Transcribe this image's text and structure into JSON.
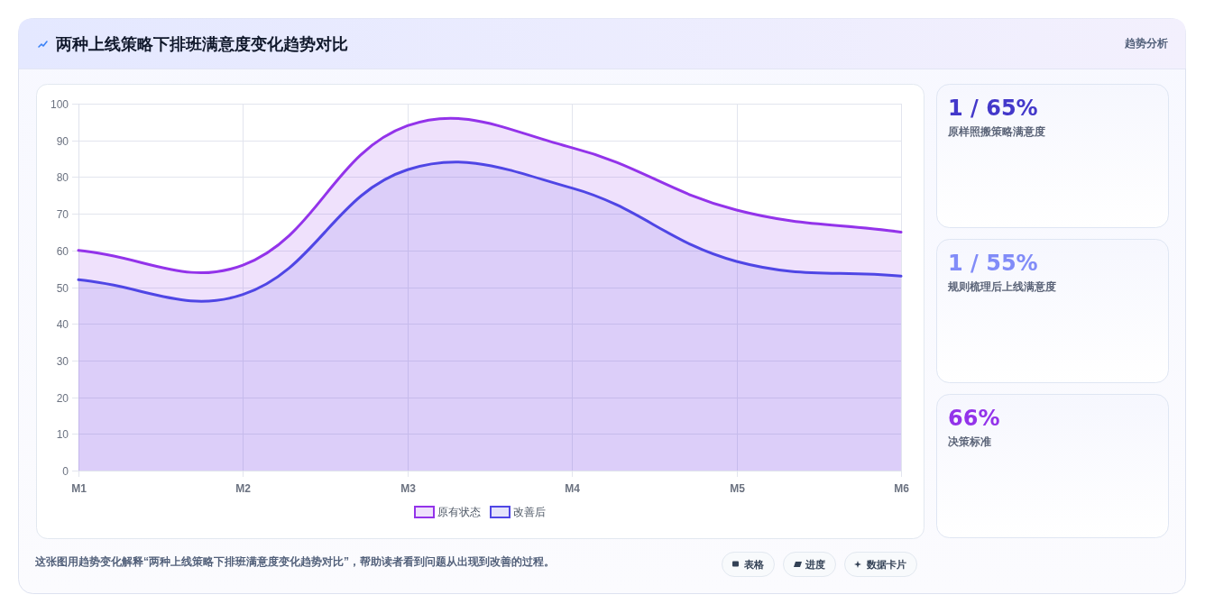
{
  "chart_data": [
    {
      "type": "area",
      "title": "两种上线策略下排班满意度变化趋势对比",
      "categories": [
        "M1",
        "M2",
        "M3",
        "M4",
        "M5",
        "M6"
      ],
      "series": [
        {
          "name": "原有状态",
          "color": "#9333ea",
          "values": [
            60,
            56,
            94,
            88,
            71,
            65
          ]
        },
        {
          "name": "改善后",
          "color": "#4f46e5",
          "values": [
            52,
            48,
            82,
            77,
            57,
            53
          ]
        }
      ],
      "ylim": [
        0,
        100
      ],
      "yticks": [
        0,
        10,
        20,
        30,
        40,
        50,
        60,
        70,
        80,
        90,
        100
      ],
      "grid": true,
      "legend": "bottom",
      "line_style": "solid",
      "annotations": [
        "这张图用趋势变化解释“两种上线策略下排班满意度变化趋势对比”，帮助读者看到问题从出现到改善的过程。",
        "表格",
        "进度",
        "数据卡片"
      ]
    },
    {
      "type": "other",
      "title": "1 / 65%",
      "subtitle": "原样照搬策略满意度",
      "color": "#4338ca",
      "annotations": [
        "趋势分析"
      ]
    },
    {
      "type": "other",
      "title": "1 / 55%",
      "subtitle": "规则梳理后上线满意度",
      "color": "#818cf8"
    },
    {
      "type": "other",
      "title": "66%",
      "subtitle": "决策标准",
      "color": "#9333ea"
    }
  ]
}
